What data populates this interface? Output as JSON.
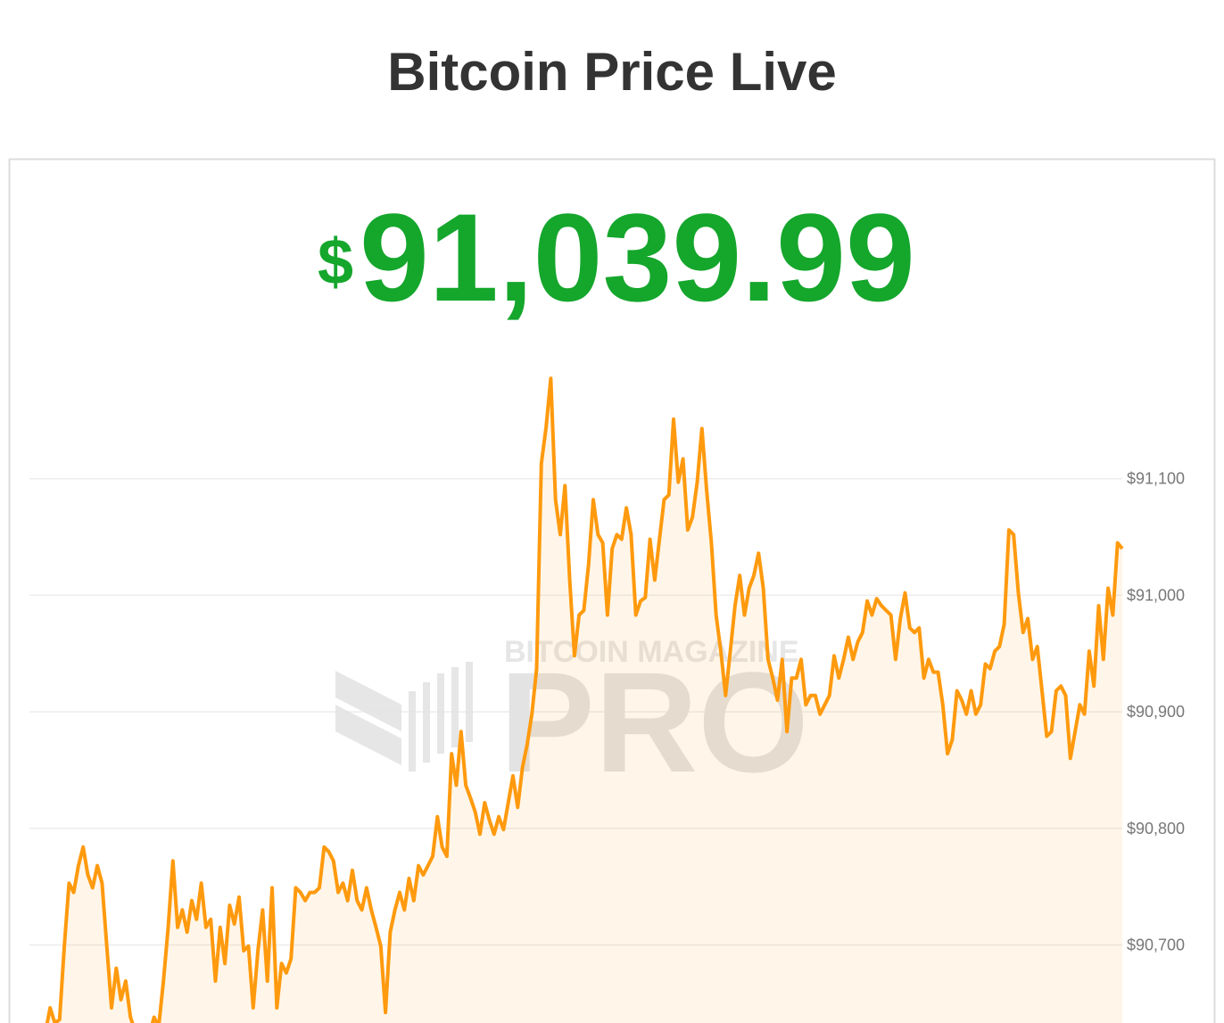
{
  "chart_data": {
    "type": "line",
    "title": "Bitcoin Price Live",
    "price": {
      "currency": "$",
      "amount": "91,039.99"
    },
    "watermark": {
      "brand": "BITCOIN MAGAZINE",
      "product": "PRO"
    },
    "ylim": [
      90633,
      91200
    ],
    "yticks": [
      {
        "value": 90700,
        "label": "$90,700"
      },
      {
        "value": 90800,
        "label": "$90,800"
      },
      {
        "value": 90900,
        "label": "$90,900"
      },
      {
        "value": 91000,
        "label": "$91,000"
      },
      {
        "value": 91100,
        "label": "$91,100"
      }
    ],
    "grid": true,
    "area": true,
    "series": [
      {
        "color": "#ff9a0e",
        "values": [
          90620,
          90615,
          90620,
          90625,
          90646,
          90633,
          90636,
          90699,
          90753,
          90745,
          90768,
          90784,
          90760,
          90749,
          90768,
          90753,
          90699,
          90646,
          90680,
          90653,
          90669,
          90638,
          90626,
          90623,
          90619,
          90623,
          90638,
          90630,
          90669,
          90715,
          90772,
          90715,
          90730,
          90711,
          90738,
          90722,
          90753,
          90715,
          90722,
          90669,
          90715,
          90684,
          90734,
          90718,
          90741,
          90695,
          90699,
          90646,
          90695,
          90730,
          90669,
          90749,
          90646,
          90684,
          90676,
          90688,
          90749,
          90745,
          90738,
          90745,
          90745,
          90749,
          90784,
          90780,
          90772,
          90745,
          90753,
          90738,
          90764,
          90738,
          90730,
          90749,
          90730,
          90715,
          90699,
          90642,
          90711,
          90730,
          90745,
          90730,
          90757,
          90738,
          90768,
          90760,
          90768,
          90776,
          90810,
          90784,
          90776,
          90864,
          90837,
          90883,
          90837,
          90826,
          90814,
          90795,
          90822,
          90807,
          90795,
          90810,
          90799,
          90822,
          90845,
          90818,
          90852,
          90872,
          90898,
          90937,
          91113,
          91144,
          91186,
          91082,
          91052,
          91094,
          91013,
          90948,
          90983,
          90987,
          91026,
          91082,
          91052,
          91045,
          90983,
          91040,
          91052,
          91048,
          91075,
          91052,
          90983,
          90995,
          90998,
          91048,
          91013,
          91048,
          91082,
          91086,
          91151,
          91097,
          91117,
          91056,
          91067,
          91097,
          91143,
          91090,
          91045,
          90983,
          90952,
          90914,
          90952,
          90991,
          91017,
          90983,
          91006,
          91017,
          91036,
          91006,
          90945,
          90929,
          90910,
          90945,
          90883,
          90929,
          90929,
          90945,
          90906,
          90914,
          90914,
          90898,
          90906,
          90914,
          90948,
          90929,
          90945,
          90964,
          90945,
          90960,
          90968,
          90995,
          90983,
          90997,
          90991,
          90987,
          90983,
          90945,
          90980,
          91002,
          90972,
          90968,
          90972,
          90929,
          90945,
          90934,
          90934,
          90906,
          90864,
          90876,
          90918,
          90910,
          90898,
          90918,
          90898,
          90906,
          90941,
          90937,
          90952,
          90956,
          90975,
          91056,
          91052,
          91002,
          90968,
          90980,
          90945,
          90956,
          90918,
          90879,
          90883,
          90918,
          90922,
          90914,
          90860,
          90883,
          90906,
          90898,
          90952,
          90922,
          90991,
          90945,
          91006,
          90983,
          91045,
          91040
        ]
      }
    ]
  }
}
